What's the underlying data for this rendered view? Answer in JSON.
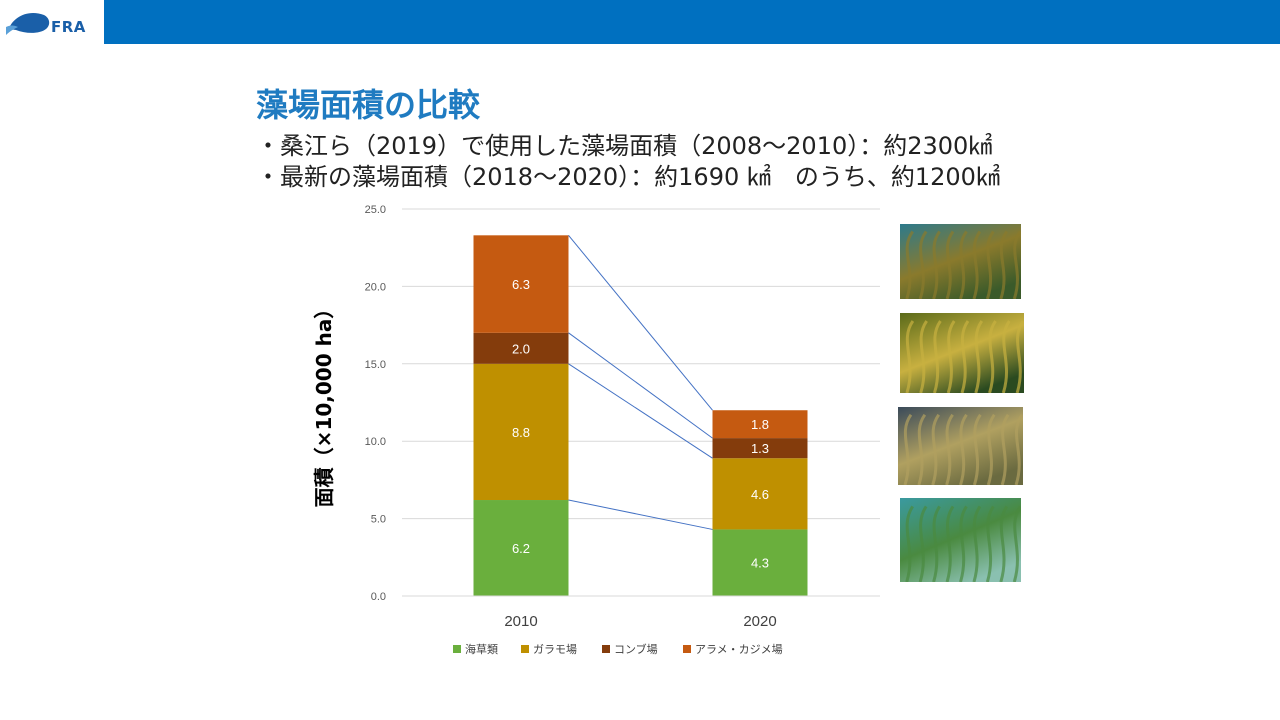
{
  "header": {
    "logo_text": "FRA",
    "brand_color": "#0070c0"
  },
  "slide": {
    "title": "藻場面積の比較",
    "bullet1": "・桑江ら（2019）で使用した藻場面積（2008～2010）：約2300㎢",
    "bullet2": "・最新の藻場面積（2018～2020）：約1690 ㎢　のうち、約1200㎢"
  },
  "chart_data": {
    "type": "bar",
    "stacked": true,
    "categories": [
      "2010",
      "2020"
    ],
    "series": [
      {
        "name": "海草類",
        "values": [
          6.2,
          4.3
        ],
        "color": "#6aaf3d"
      },
      {
        "name": "ガラモ場",
        "values": [
          8.8,
          4.6
        ],
        "color": "#bf9000"
      },
      {
        "name": "コンブ場",
        "values": [
          2.0,
          1.3
        ],
        "color": "#843c0c"
      },
      {
        "name": "アラメ・カジメ場",
        "values": [
          6.3,
          1.8
        ],
        "color": "#c55a11"
      }
    ],
    "ylabel": "面積（×10,000 ha）",
    "ylim": [
      0,
      25
    ],
    "yticks": [
      "0.0",
      "5.0",
      "10.0",
      "15.0",
      "20.0",
      "25.0"
    ],
    "grid": true,
    "legend_position": "bottom",
    "connector_color": "#4472c4"
  },
  "photos": [
    {
      "icon": "kelp-forest-photo",
      "colors": [
        "#2c7a8c",
        "#8a7a2c",
        "#3a5a2a"
      ]
    },
    {
      "icon": "sargassum-photo",
      "colors": [
        "#5a6a1a",
        "#c8b040",
        "#2a4a20"
      ]
    },
    {
      "icon": "seaweed-bed-photo",
      "colors": [
        "#3a4a5a",
        "#b0a060",
        "#6a6a40"
      ]
    },
    {
      "icon": "seagrass-photo",
      "colors": [
        "#3a9aa0",
        "#4a8a40",
        "#8ac0b0"
      ]
    }
  ]
}
